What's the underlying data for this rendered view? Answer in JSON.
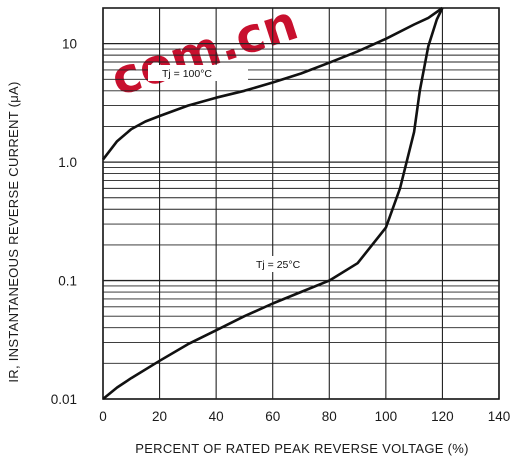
{
  "watermark": {
    "text": "com.cn",
    "color": "#c8102e"
  },
  "chart_data": {
    "type": "line",
    "xlabel": "PERCENT OF RATED PEAK REVERSE VOLTAGE (%)",
    "ylabel": "IR, INSTANTANEOUS REVERSE CURRENT (μA)",
    "xlim": [
      0,
      140
    ],
    "ylim": [
      0.01,
      20
    ],
    "yscale": "log",
    "grid": true,
    "x_ticks": [
      "0",
      "20",
      "40",
      "60",
      "80",
      "100",
      "120",
      "140"
    ],
    "y_ticks": [
      "0.01",
      "0.1",
      "1.0",
      "10"
    ],
    "series": [
      {
        "name": "Tj = 100°C",
        "x": [
          0,
          5,
          10,
          15,
          20,
          30,
          40,
          50,
          60,
          70,
          80,
          90,
          100,
          110,
          115,
          120
        ],
        "y": [
          1.05,
          1.5,
          1.9,
          2.2,
          2.45,
          3.0,
          3.5,
          4.0,
          4.7,
          5.6,
          6.9,
          8.6,
          11.0,
          14.5,
          16.5,
          20
        ]
      },
      {
        "name": "Tj = 25°C",
        "x": [
          0,
          5,
          10,
          20,
          30,
          40,
          50,
          60,
          70,
          80,
          90,
          100,
          105,
          110,
          112,
          115,
          118,
          120
        ],
        "y": [
          0.01,
          0.0125,
          0.015,
          0.021,
          0.029,
          0.038,
          0.05,
          0.064,
          0.08,
          0.1,
          0.14,
          0.28,
          0.6,
          1.8,
          4.0,
          9.5,
          16.0,
          20
        ]
      }
    ]
  },
  "labels": {
    "tj100": "Tj = 100°C",
    "tj25": "Tj = 25°C",
    "ylabel_ir": "IR, INSTANTANEOUS REVERSE CURRENT (μA)"
  }
}
